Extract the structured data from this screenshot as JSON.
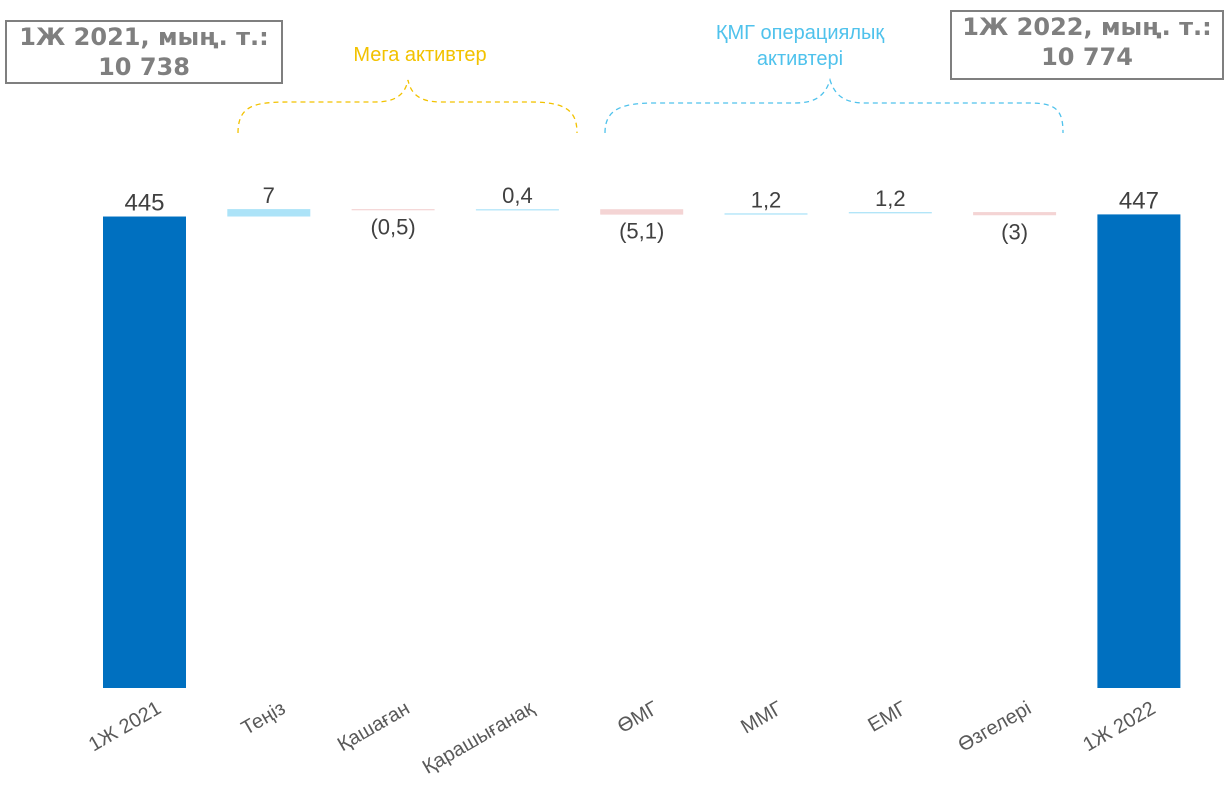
{
  "summary": {
    "left": {
      "label": "1Ж 2021, мың. т.:",
      "value": "10 738"
    },
    "right": {
      "label": "1Ж 2022, мың. т.:",
      "value": "10 774"
    }
  },
  "groups": {
    "mega": "Мега активтер",
    "kmg_line1": "ҚМГ операциялық",
    "kmg_line2": "активтері"
  },
  "colors": {
    "total": "#0070c0",
    "increase": "#ace3f8",
    "decrease": "#f4d4d4",
    "mega_bracket": "#f2c200",
    "kmg_bracket": "#4fc2ec",
    "text": "#404040"
  },
  "chart_data": {
    "type": "bar",
    "subtype": "waterfall",
    "categories": [
      "1Ж 2021",
      "Теңіз",
      "Қашаған",
      "Қарашығанақ",
      "ӨМГ",
      "ММГ",
      "ЕМГ",
      "Өзгелері",
      "1Ж 2022"
    ],
    "values": [
      445,
      7,
      -0.5,
      0.4,
      -5.1,
      1.2,
      1.2,
      -3,
      447
    ],
    "kinds": [
      "total",
      "delta",
      "delta",
      "delta",
      "delta",
      "delta",
      "delta",
      "delta",
      "total"
    ],
    "labels": [
      "445",
      "7",
      "(0,5)",
      "0,4",
      "(5,1)",
      "1,2",
      "1,2",
      "(3)",
      "447"
    ],
    "ylim": [
      0,
      450
    ]
  }
}
